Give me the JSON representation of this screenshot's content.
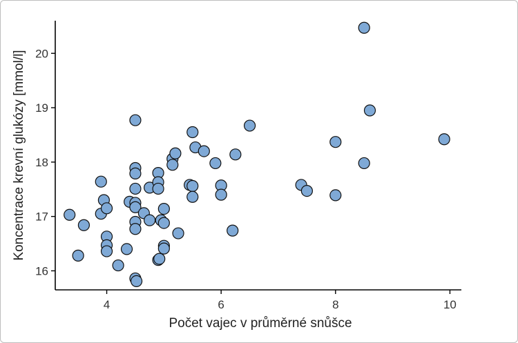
{
  "chart_data": {
    "type": "scatter",
    "xlabel": "Počet vajec v průměrné snůšce",
    "ylabel": "Koncentrace krevní glukózy [mmol/l]",
    "xlim": [
      3.1,
      10.2
    ],
    "ylim": [
      15.65,
      20.6
    ],
    "xticks": [
      4,
      6,
      8,
      10
    ],
    "yticks": [
      16,
      17,
      18,
      19,
      20
    ],
    "grid": false,
    "colors": {
      "point_fill": "#7fa9d6",
      "point_stroke": "#111111"
    },
    "points": [
      {
        "x": 3.35,
        "y": 17.03
      },
      {
        "x": 3.5,
        "y": 16.28
      },
      {
        "x": 3.6,
        "y": 16.84
      },
      {
        "x": 3.9,
        "y": 17.64
      },
      {
        "x": 3.9,
        "y": 17.05
      },
      {
        "x": 3.95,
        "y": 17.3
      },
      {
        "x": 4.0,
        "y": 17.15
      },
      {
        "x": 4.0,
        "y": 16.63
      },
      {
        "x": 4.0,
        "y": 16.47
      },
      {
        "x": 4.0,
        "y": 16.36
      },
      {
        "x": 4.2,
        "y": 16.1
      },
      {
        "x": 4.35,
        "y": 16.4
      },
      {
        "x": 4.4,
        "y": 17.27
      },
      {
        "x": 4.5,
        "y": 18.77
      },
      {
        "x": 4.5,
        "y": 17.89
      },
      {
        "x": 4.5,
        "y": 17.79
      },
      {
        "x": 4.5,
        "y": 17.51
      },
      {
        "x": 4.5,
        "y": 17.25
      },
      {
        "x": 4.5,
        "y": 17.17
      },
      {
        "x": 4.5,
        "y": 16.9
      },
      {
        "x": 4.5,
        "y": 16.77
      },
      {
        "x": 4.5,
        "y": 15.86
      },
      {
        "x": 4.52,
        "y": 15.81
      },
      {
        "x": 4.65,
        "y": 17.06
      },
      {
        "x": 4.75,
        "y": 17.53
      },
      {
        "x": 4.75,
        "y": 16.93
      },
      {
        "x": 4.9,
        "y": 17.8
      },
      {
        "x": 4.9,
        "y": 17.63
      },
      {
        "x": 4.9,
        "y": 17.51
      },
      {
        "x": 4.9,
        "y": 16.2
      },
      {
        "x": 4.92,
        "y": 16.22
      },
      {
        "x": 4.95,
        "y": 16.93
      },
      {
        "x": 5.0,
        "y": 17.14
      },
      {
        "x": 5.0,
        "y": 16.88
      },
      {
        "x": 5.0,
        "y": 16.46
      },
      {
        "x": 5.0,
        "y": 16.41
      },
      {
        "x": 5.15,
        "y": 18.06
      },
      {
        "x": 5.15,
        "y": 17.95
      },
      {
        "x": 5.2,
        "y": 18.16
      },
      {
        "x": 5.25,
        "y": 16.69
      },
      {
        "x": 5.45,
        "y": 17.58
      },
      {
        "x": 5.5,
        "y": 18.55
      },
      {
        "x": 5.5,
        "y": 17.56
      },
      {
        "x": 5.5,
        "y": 17.36
      },
      {
        "x": 5.55,
        "y": 18.27
      },
      {
        "x": 5.7,
        "y": 18.2
      },
      {
        "x": 5.9,
        "y": 17.98
      },
      {
        "x": 6.0,
        "y": 17.57
      },
      {
        "x": 6.0,
        "y": 17.4
      },
      {
        "x": 6.2,
        "y": 16.74
      },
      {
        "x": 6.25,
        "y": 18.14
      },
      {
        "x": 6.5,
        "y": 18.67
      },
      {
        "x": 7.4,
        "y": 17.58
      },
      {
        "x": 7.5,
        "y": 17.47
      },
      {
        "x": 8.0,
        "y": 18.37
      },
      {
        "x": 8.0,
        "y": 17.39
      },
      {
        "x": 8.5,
        "y": 20.47
      },
      {
        "x": 8.5,
        "y": 17.98
      },
      {
        "x": 8.6,
        "y": 18.95
      },
      {
        "x": 9.9,
        "y": 18.42
      }
    ]
  }
}
